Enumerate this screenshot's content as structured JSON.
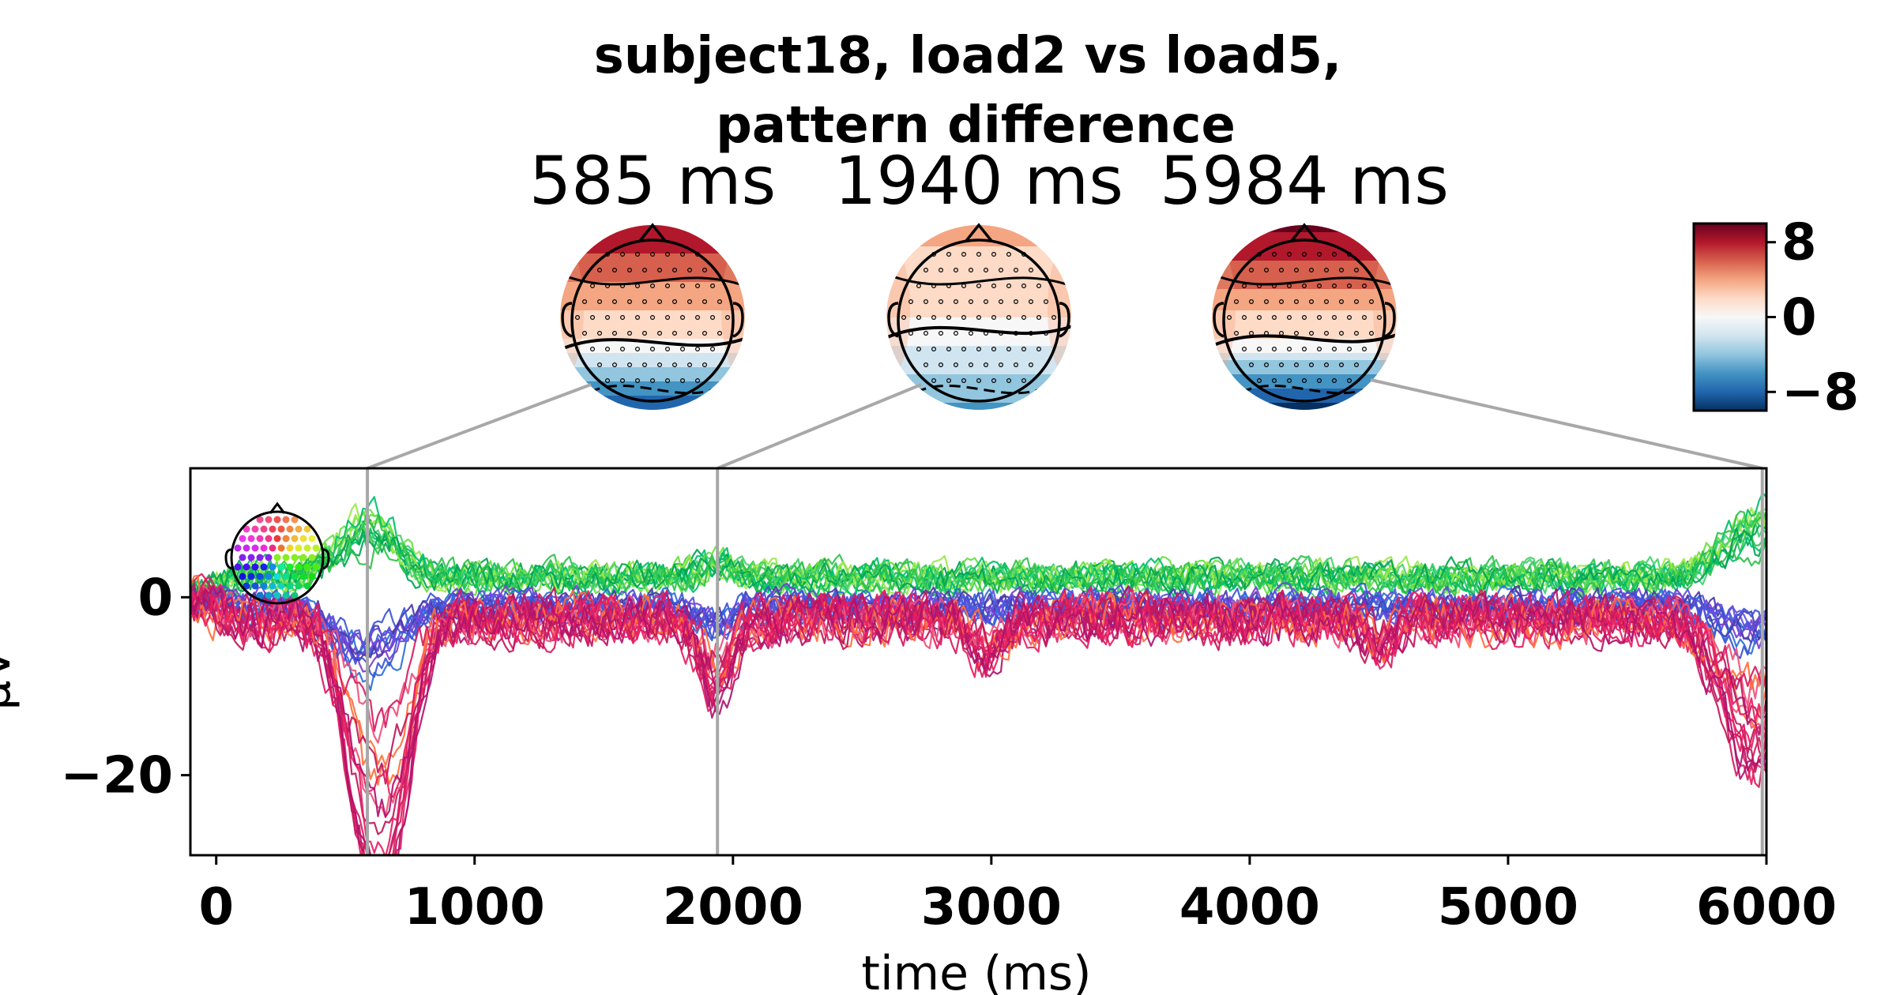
{
  "chart_data": {
    "type": "line",
    "title_lines": [
      "subject18, load2 vs load5,",
      "pattern difference"
    ],
    "topomap_times": [
      "585 ms",
      "1940 ms",
      "5984 ms"
    ],
    "topomap_time_values": [
      585,
      1940,
      5984
    ],
    "xlabel": "time (ms)",
    "ylabel": "µV",
    "xlim": [
      -100,
      6000
    ],
    "ylim": [
      -29,
      14.5
    ],
    "xticks": [
      0,
      1000,
      2000,
      3000,
      4000,
      5000,
      6000
    ],
    "xtick_labels": [
      "0",
      "1000",
      "2000",
      "3000",
      "4000",
      "5000",
      "6000"
    ],
    "yticks": [
      0,
      -20
    ],
    "ytick_labels": [
      "0",
      "−20"
    ],
    "colorbar": {
      "ticks": [
        8,
        0,
        -8
      ],
      "tick_labels": [
        "8",
        "0",
        "−8"
      ],
      "cmap": [
        "#67001f",
        "#b2182b",
        "#d6604d",
        "#f4a582",
        "#fddbc7",
        "#f7f7f7",
        "#d1e5f0",
        "#92c5de",
        "#4393c3",
        "#2166ac",
        "#053061"
      ]
    },
    "grid": false,
    "series_note_groups": [
      {
        "color_family": "green",
        "colors": [
          "#00a651",
          "#2ec24a",
          "#66e040",
          "#9be84d",
          "#00c06a",
          "#44d16b"
        ],
        "peak_585": 8,
        "peak_5984": 9,
        "trough_585": 0
      },
      {
        "color_family": "blue-purple",
        "colors": [
          "#3a55d6",
          "#5d4fe0",
          "#7a3fd0",
          "#2f6fd8",
          "#4b3aa8"
        ],
        "peak_585": 2,
        "trough_585": -8
      },
      {
        "color_family": "magenta-red",
        "colors": [
          "#d81b60",
          "#c2185b",
          "#e91e63",
          "#b0126e",
          "#f0507a",
          "#ff6f3c"
        ],
        "trough_585": -27,
        "trough_1940": -11,
        "trough_5984": -19
      }
    ]
  }
}
